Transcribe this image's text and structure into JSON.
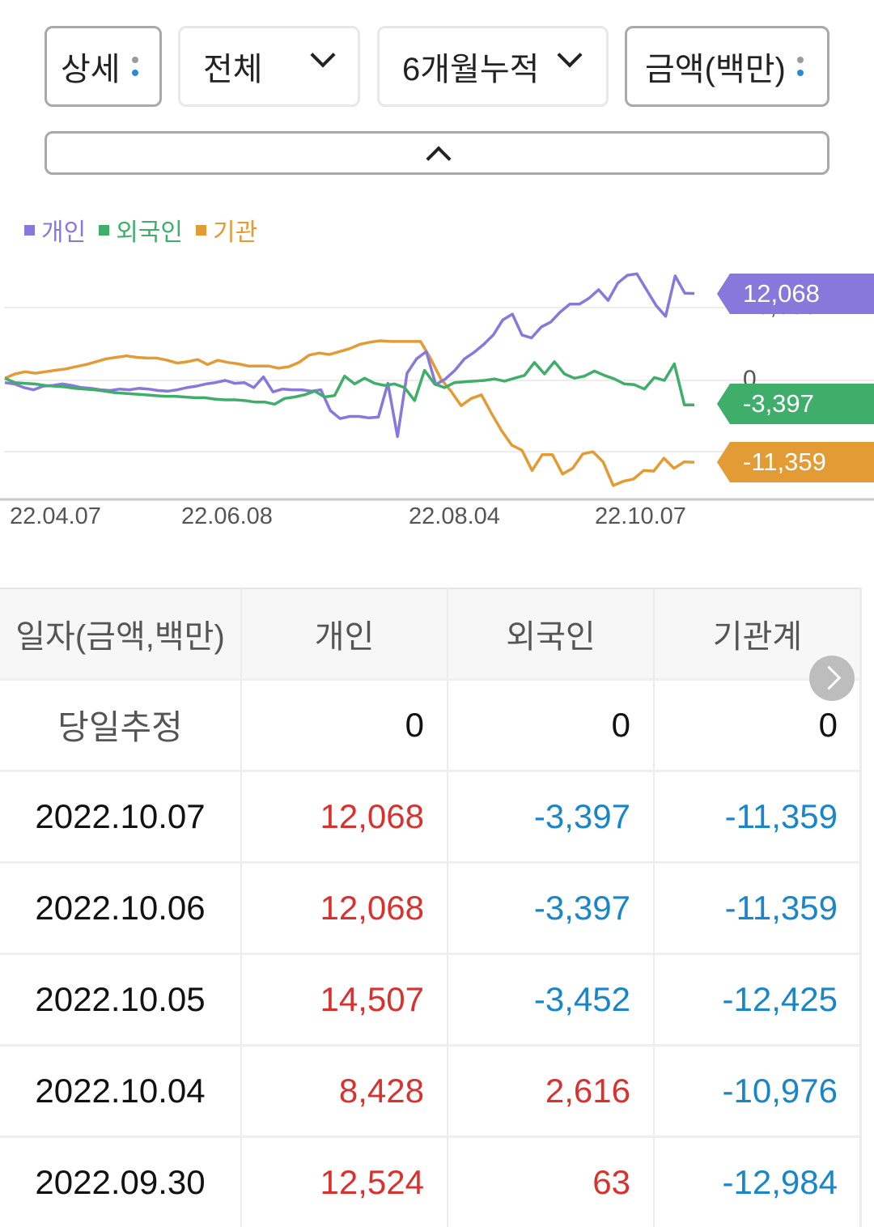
{
  "controls": {
    "detail_label": "상세",
    "investor_select": "전체",
    "period_select": "6개월누적",
    "unit_label": "금액(백만)",
    "collapse_icon": "chevron-up-icon"
  },
  "legend": [
    {
      "label": "개인",
      "color": "#8878dc"
    },
    {
      "label": "외국인",
      "color": "#3fae6a"
    },
    {
      "label": "기관",
      "color": "#e39b35"
    }
  ],
  "chart_data": {
    "type": "line",
    "title": "",
    "xlabel": "",
    "ylabel": "",
    "x_ticks": [
      "22.04.07",
      "22.06.08",
      "22.08.04",
      "22.10.07"
    ],
    "y_gridlines": [
      10000,
      0,
      -10000
    ],
    "y_tick_labels_visible": [
      "0"
    ],
    "ylim": [
      -16000,
      16000
    ],
    "grid": true,
    "legend_position": "top-left",
    "series": [
      {
        "name": "개인",
        "color": "#8878dc",
        "last_value": 12068,
        "values": [
          -300,
          -500,
          -1000,
          -1300,
          -800,
          -700,
          -500,
          -700,
          -1000,
          -1100,
          -1300,
          -1400,
          -1200,
          -1300,
          -1100,
          -1200,
          -1400,
          -1500,
          -1300,
          -1000,
          -800,
          -500,
          -300,
          0,
          -400,
          -300,
          -1000,
          500,
          -1600,
          -1200,
          -1300,
          -1300,
          -1500,
          -1300,
          -4200,
          -5300,
          -5000,
          -5000,
          -5200,
          -5100,
          -400,
          -7800,
          1000,
          3000,
          4000,
          -600,
          200,
          1400,
          3000,
          3900,
          5000,
          6300,
          8400,
          9200,
          6300,
          5900,
          7400,
          8100,
          9500,
          10600,
          10600,
          11400,
          12600,
          11100,
          13500,
          14600,
          14800,
          12600,
          10400,
          8900,
          14500,
          12100,
          12068
        ]
      },
      {
        "name": "외국인",
        "color": "#3fae6a",
        "last_value": -3397,
        "values": [
          300,
          -300,
          -400,
          -500,
          -700,
          -800,
          -900,
          -1100,
          -1200,
          -1300,
          -1500,
          -1700,
          -1800,
          -1900,
          -2000,
          -2100,
          -2200,
          -2200,
          -2300,
          -2400,
          -2400,
          -2600,
          -2700,
          -2700,
          -2800,
          -3000,
          -3000,
          -3300,
          -2500,
          -2300,
          -2000,
          -1500,
          -2300,
          -2100,
          600,
          -500,
          300,
          -400,
          -700,
          -500,
          -1000,
          -2800,
          1400,
          -500,
          -1000,
          -300,
          -200,
          -100,
          0,
          200,
          -100,
          300,
          700,
          2500,
          900,
          2600,
          900,
          300,
          600,
          1300,
          700,
          200,
          -500,
          -600,
          -1200,
          400,
          0,
          2300,
          -3400,
          -3397
        ]
      },
      {
        "name": "기관",
        "color": "#e39b35",
        "last_value": -11359,
        "values": [
          300,
          900,
          1200,
          1000,
          1200,
          1400,
          1600,
          1900,
          2200,
          2600,
          3000,
          3200,
          3400,
          3200,
          3100,
          3100,
          2800,
          2400,
          2600,
          2900,
          2200,
          2800,
          2500,
          2300,
          2000,
          2000,
          2000,
          1700,
          1900,
          2500,
          3500,
          3800,
          3600,
          4000,
          4400,
          5000,
          5300,
          5500,
          5400,
          5400,
          5400,
          5400,
          3000,
          200,
          -1500,
          -3500,
          -2500,
          -2000,
          -4600,
          -7000,
          -9000,
          -9700,
          -12500,
          -10300,
          -10300,
          -13000,
          -12200,
          -10200,
          -9900,
          -11300,
          -14600,
          -14000,
          -13700,
          -12500,
          -12600,
          -10800,
          -12200,
          -11300,
          -11359
        ]
      }
    ],
    "end_flags": [
      {
        "series": "개인",
        "value": "12,068",
        "color": "#8878dc"
      },
      {
        "series": "외국인",
        "value": "-3,397",
        "color": "#3fae6a"
      },
      {
        "series": "기관",
        "value": "-11,359",
        "color": "#e39b35"
      }
    ],
    "grid_labels": {
      "upper": "10,000",
      "middle": "0"
    }
  },
  "table": {
    "headers": [
      "일자(금액,백만)",
      "개인",
      "외국인",
      "기관계"
    ],
    "estimate_row": {
      "label": "당일추정",
      "individual": "0",
      "foreign": "0",
      "institution": "0"
    },
    "rows": [
      {
        "date": "2022.10.07",
        "individual": "12,068",
        "foreign": "-3,397",
        "institution": "-11,359"
      },
      {
        "date": "2022.10.06",
        "individual": "12,068",
        "foreign": "-3,397",
        "institution": "-11,359"
      },
      {
        "date": "2022.10.05",
        "individual": "14,507",
        "foreign": "-3,452",
        "institution": "-12,425"
      },
      {
        "date": "2022.10.04",
        "individual": "8,428",
        "foreign": "2,616",
        "institution": "-10,976"
      },
      {
        "date": "2022.09.30",
        "individual": "12,524",
        "foreign": "63",
        "institution": "-12,984"
      }
    ],
    "scroll_next_icon": "chevron-right-icon"
  },
  "colors": {
    "positive": "#d8322f",
    "negative": "#1a86c8"
  }
}
